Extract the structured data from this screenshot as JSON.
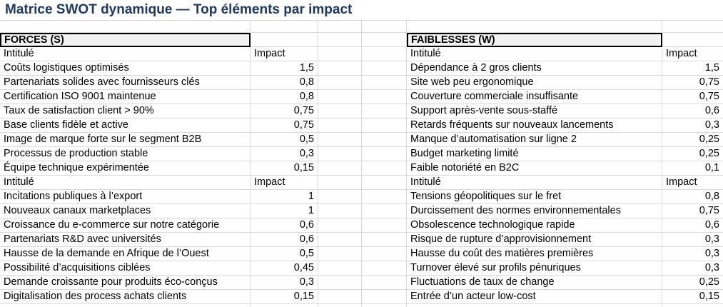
{
  "title": "Matrice SWOT dynamique — Top éléments par impact",
  "headers": {
    "name": "Intitulé",
    "impact": "Impact"
  },
  "colors": {
    "title_text": "#1f3864",
    "gridline": "#d9d9d9",
    "section_fill": "#f2f2f2",
    "section_border": "#000000",
    "cell_text": "#000000",
    "background": "#ffffff"
  },
  "panels": {
    "left": {
      "section_label": "FORCES (S)",
      "groups": [
        {
          "rows": [
            {
              "label": "Coûts logistiques optimisés",
              "impact": "1,5"
            },
            {
              "label": "Partenariats solides avec fournisseurs clés",
              "impact": "0,8"
            },
            {
              "label": "Certification ISO 9001 maintenue",
              "impact": "0,8"
            },
            {
              "label": "Taux de satisfaction client > 90%",
              "impact": "0,75"
            },
            {
              "label": "Base clients fidèle et active",
              "impact": "0,75"
            },
            {
              "label": "Image de marque forte sur le segment B2B",
              "impact": "0,5"
            },
            {
              "label": "Processus de production stable",
              "impact": "0,3"
            },
            {
              "label": "Équipe technique expérimentée",
              "impact": "0,15"
            }
          ]
        },
        {
          "rows": [
            {
              "label": "Incitations publiques à l’export",
              "impact": "1"
            },
            {
              "label": "Nouveaux canaux marketplaces",
              "impact": "1"
            },
            {
              "label": "Croissance du e-commerce sur notre catégorie",
              "impact": "0,6"
            },
            {
              "label": "Partenariats R&D avec universités",
              "impact": "0,6"
            },
            {
              "label": "Hausse de la demande en Afrique de l’Ouest",
              "impact": "0,5"
            },
            {
              "label": "Possibilité d’acquisitions ciblées",
              "impact": "0,45"
            },
            {
              "label": "Demande croissante pour produits éco-conçus",
              "impact": "0,3"
            },
            {
              "label": "Digitalisation des process achats clients",
              "impact": "0,15"
            }
          ]
        }
      ]
    },
    "right": {
      "section_label": "FAIBLESSES (W)",
      "groups": [
        {
          "rows": [
            {
              "label": "Dépendance à 2 gros clients",
              "impact": "1,5"
            },
            {
              "label": "Site web peu ergonomique",
              "impact": "0,75"
            },
            {
              "label": "Couverture commerciale insuffisante",
              "impact": "0,75"
            },
            {
              "label": "Support après-vente sous-staffé",
              "impact": "0,6"
            },
            {
              "label": "Retards fréquents sur nouveaux lancements",
              "impact": "0,3"
            },
            {
              "label": "Manque d’automatisation sur ligne 2",
              "impact": "0,25"
            },
            {
              "label": "Budget marketing limité",
              "impact": "0,25"
            },
            {
              "label": "Faible notoriété en B2C",
              "impact": "0,1"
            }
          ]
        },
        {
          "rows": [
            {
              "label": "Tensions géopolitiques sur le fret",
              "impact": "0,8"
            },
            {
              "label": "Durcissement des normes environnementales",
              "impact": "0,75"
            },
            {
              "label": "Obsolescence technologique rapide",
              "impact": "0,6"
            },
            {
              "label": "Risque de rupture d’approvisionnement",
              "impact": "0,3"
            },
            {
              "label": "Hausse du coût des matières premières",
              "impact": "0,3"
            },
            {
              "label": "Turnover élevé sur profils pénuriques",
              "impact": "0,3"
            },
            {
              "label": "Fluctuations de taux de change",
              "impact": "0,25"
            },
            {
              "label": "Entrée d’un acteur low-cost",
              "impact": "0,15"
            }
          ]
        }
      ]
    }
  }
}
